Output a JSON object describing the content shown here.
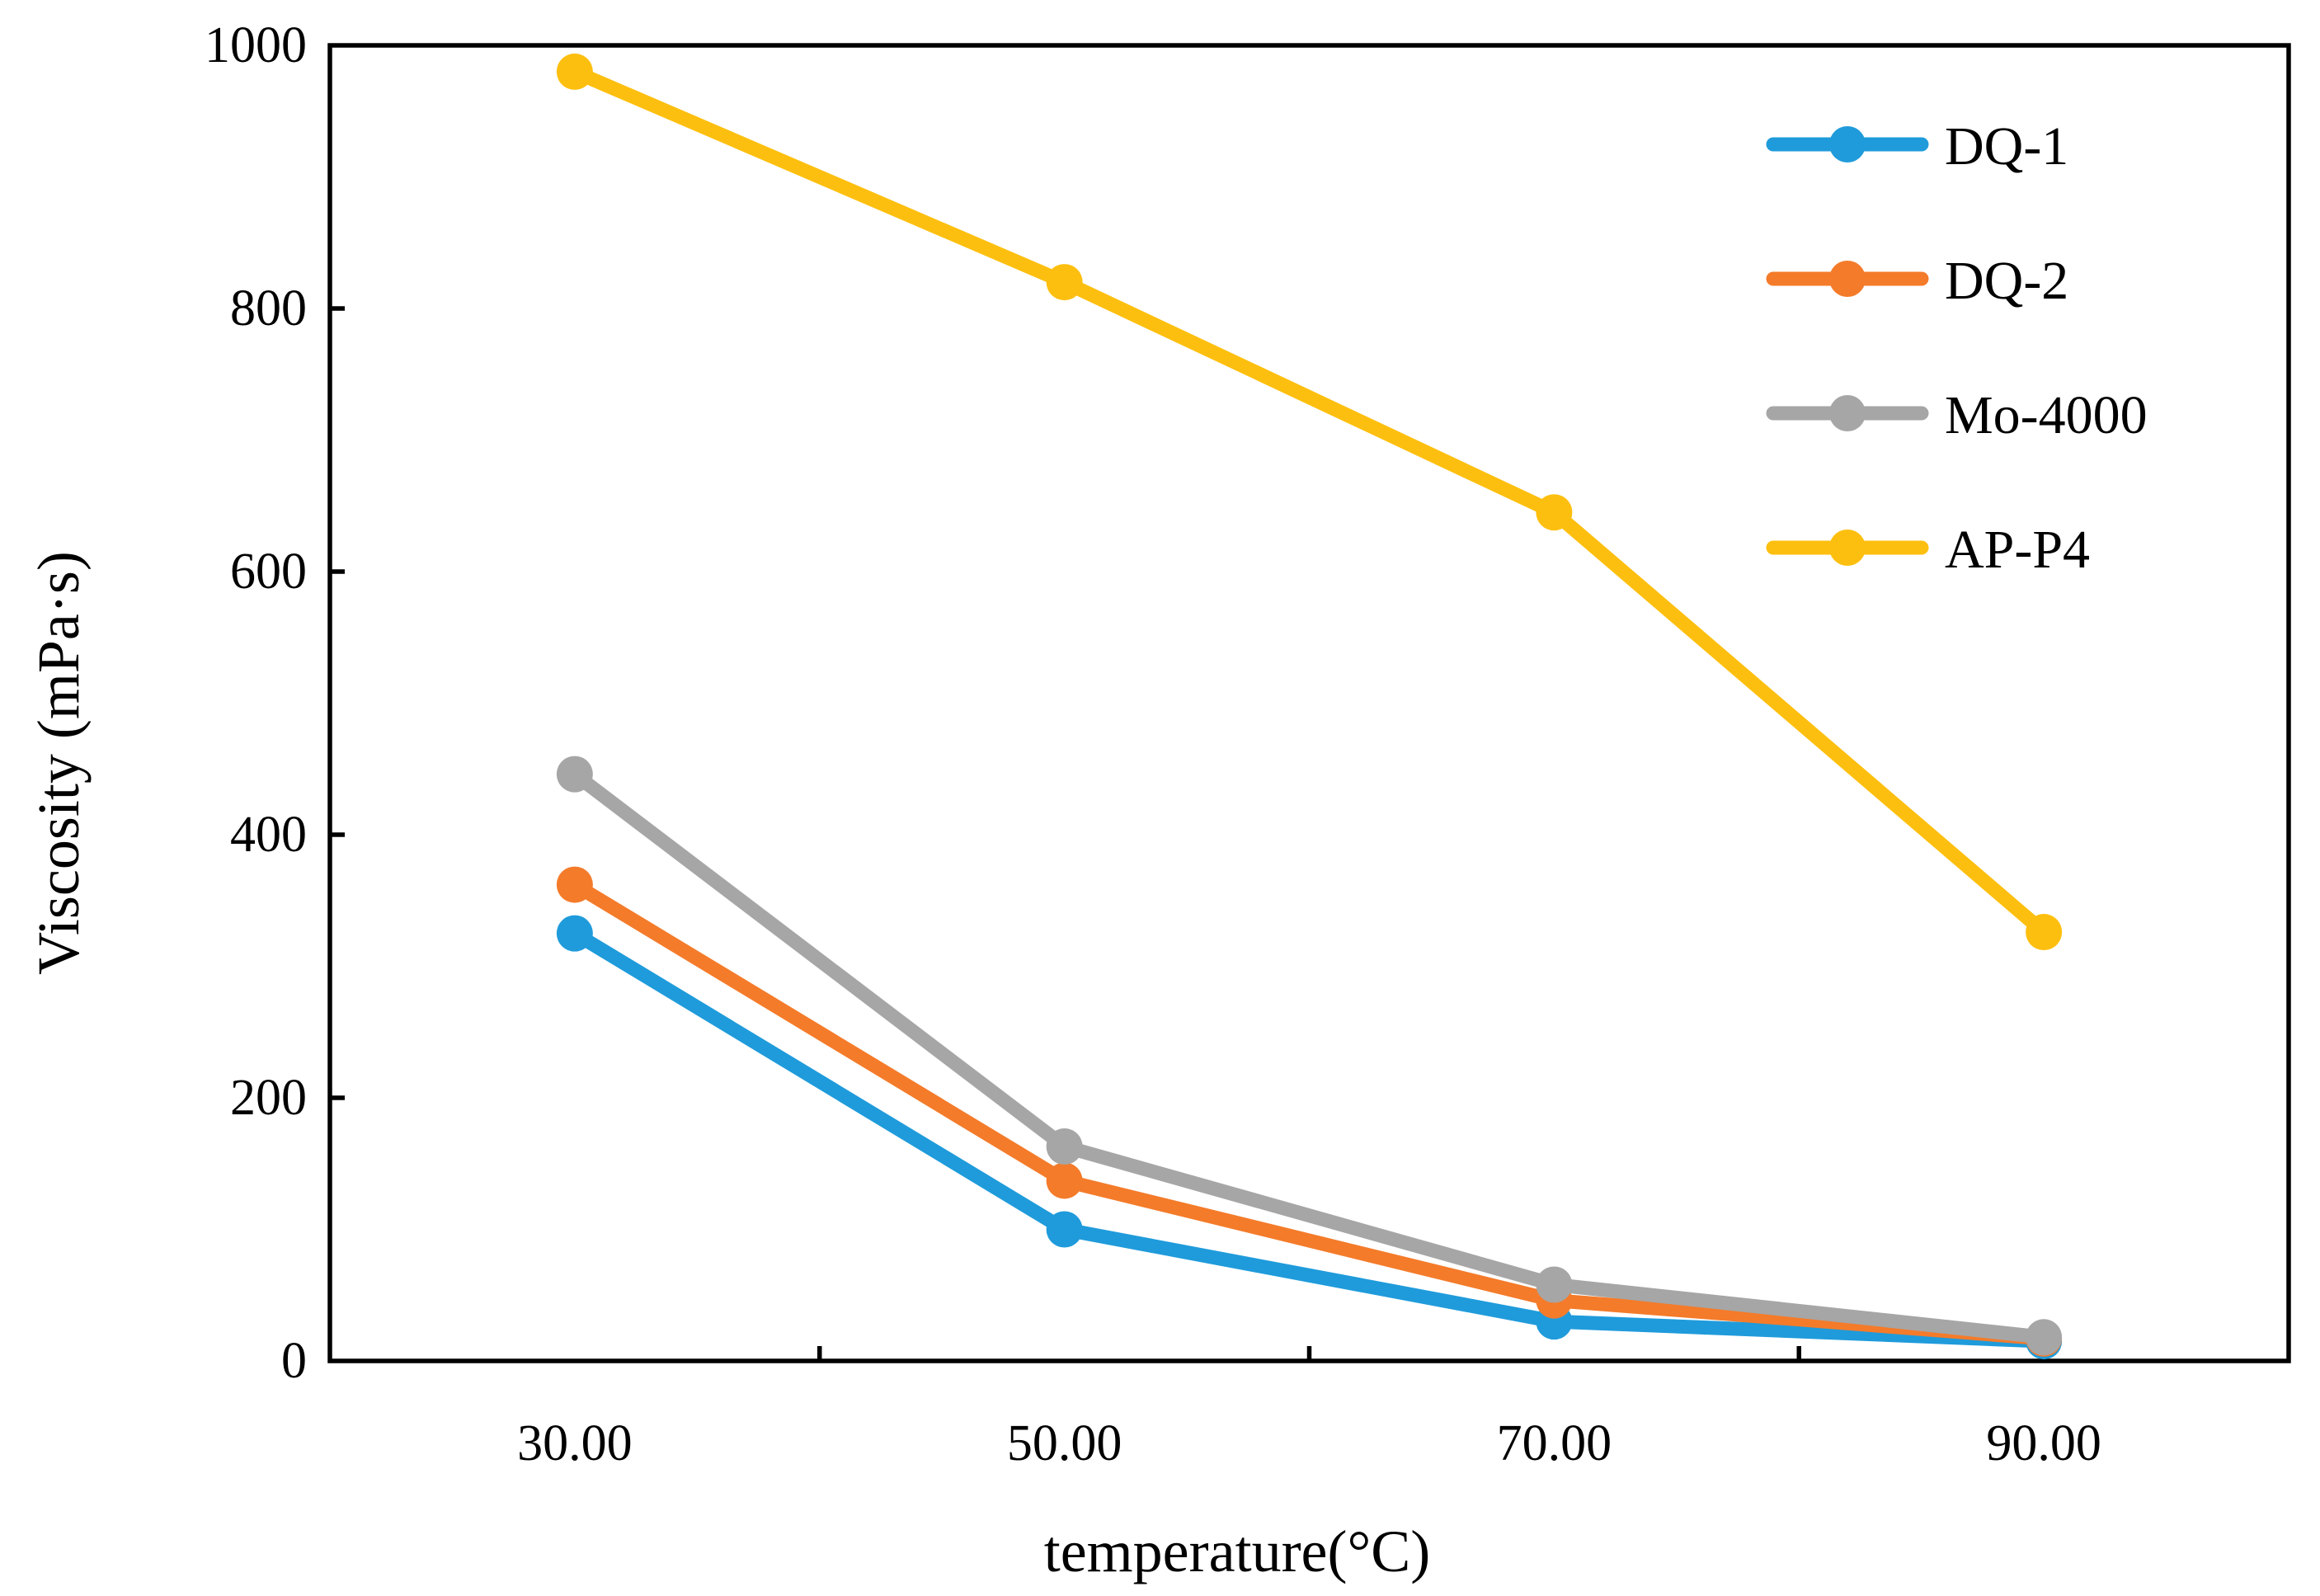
{
  "chart_data": {
    "type": "line",
    "title": "",
    "xlabel": "temperature(°C)",
    "ylabel": "Viscosity (mPa·s)",
    "x": [
      30,
      50,
      70,
      90
    ],
    "x_tick_labels": [
      "30.00",
      "50.00",
      "70.00",
      "90.00"
    ],
    "xlim": [
      20,
      100
    ],
    "ylim": [
      0,
      1000
    ],
    "y_ticks": [
      0,
      200,
      400,
      600,
      800,
      1000
    ],
    "y_tick_labels": [
      "0",
      "200",
      "400",
      "600",
      "800",
      "1000"
    ],
    "grid": false,
    "legend_position": "top-right",
    "series": [
      {
        "name": "DQ-1",
        "color": "#1F9BDB",
        "values": [
          325,
          100,
          30,
          15
        ]
      },
      {
        "name": "DQ-2",
        "color": "#F47B2A",
        "values": [
          362,
          137,
          46,
          17
        ]
      },
      {
        "name": "Mo-4000",
        "color": "#A6A6A6",
        "values": [
          446,
          163,
          58,
          18
        ]
      },
      {
        "name": "AP-P4",
        "color": "#FDBF0F",
        "values": [
          980,
          820,
          645,
          326
        ]
      }
    ]
  }
}
